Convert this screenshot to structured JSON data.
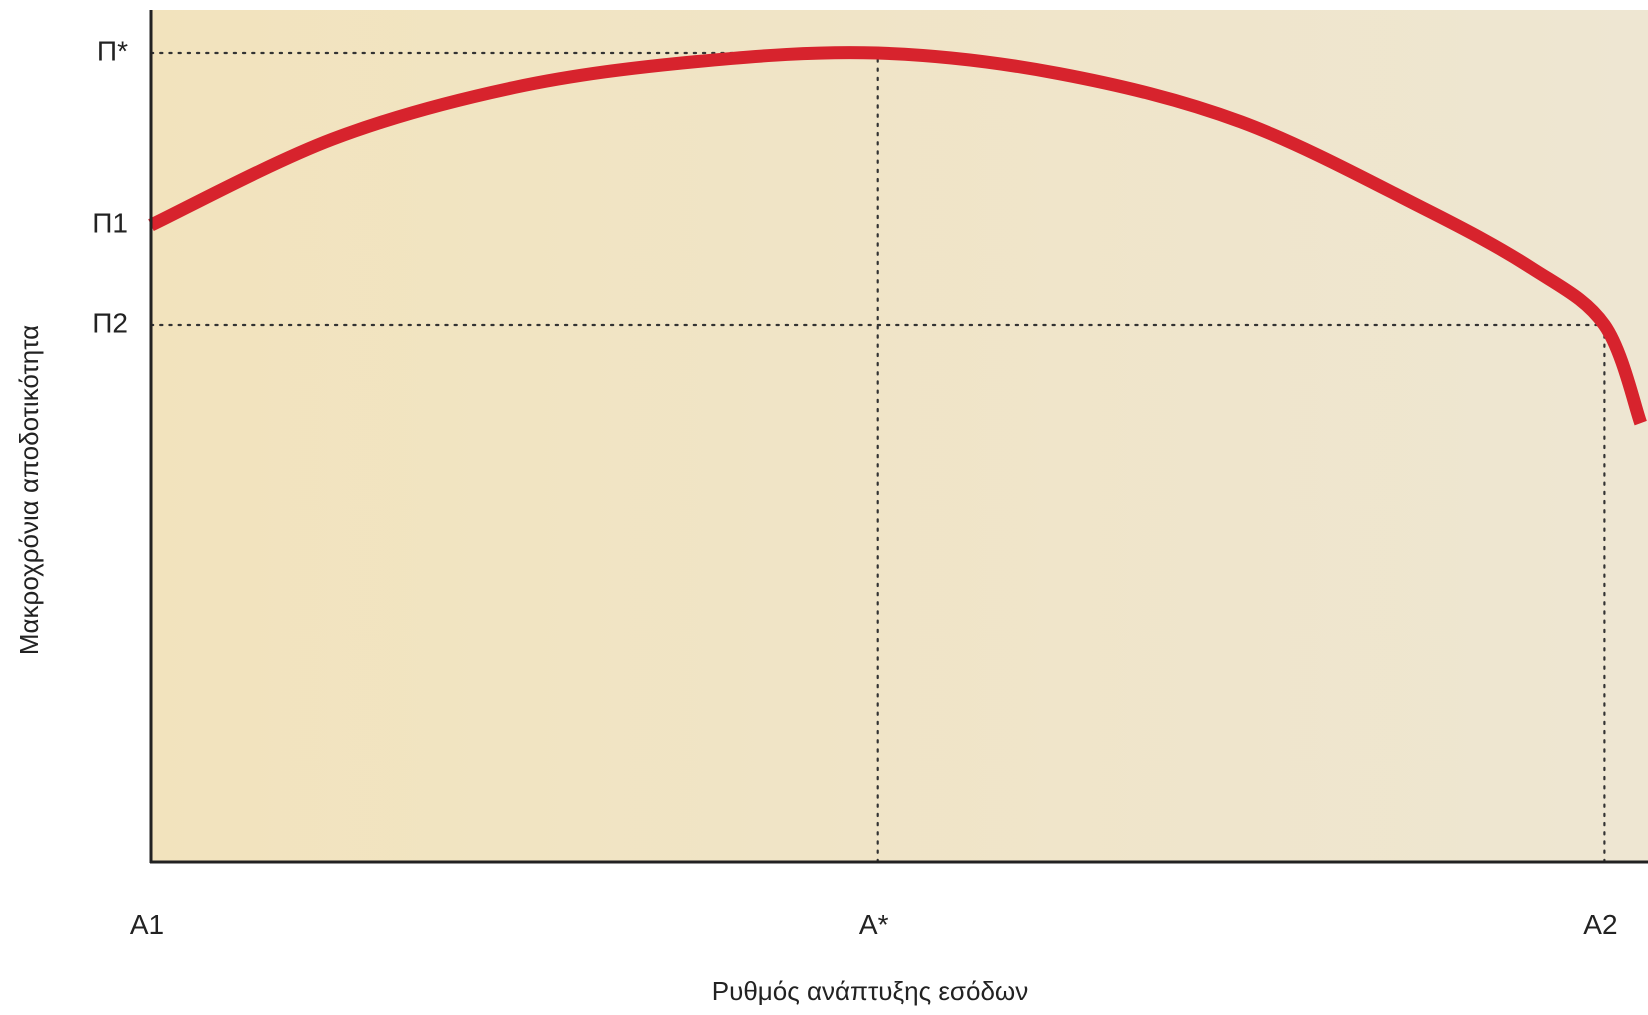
{
  "chart_data": {
    "type": "line",
    "title": "",
    "xlabel": "Ρυθμός ανάπτυξης εσόδων",
    "ylabel": "Μακροχρόνια αποδοτικότητα",
    "x_ticks": [
      {
        "label": "A1",
        "value": 0
      },
      {
        "label": "A*",
        "value": 1
      },
      {
        "label": "A2",
        "value": 2
      }
    ],
    "y_ticks": [
      {
        "label": "Π*",
        "value": 3
      },
      {
        "label": "Π1",
        "value": 2
      },
      {
        "label": "Π2",
        "value": 1.42
      }
    ],
    "xlim": [
      0,
      2.06
    ],
    "ylim": [
      -1.7,
      3.25
    ],
    "grid": false,
    "guides": [
      {
        "kind": "horizontal",
        "y": 3,
        "x_from": 0,
        "x_to": 1
      },
      {
        "kind": "vertical",
        "x": 1,
        "y_from": -1.7,
        "y_to": 3
      },
      {
        "kind": "horizontal",
        "y": 1.42,
        "x_from": 0,
        "x_to": 2
      },
      {
        "kind": "vertical",
        "x": 2,
        "y_from": -1.7,
        "y_to": 1.42
      }
    ],
    "series": [
      {
        "points": [
          {
            "x": 0,
            "y": 2
          },
          {
            "x": 0.25,
            "y": 2.5
          },
          {
            "x": 0.5,
            "y": 2.8
          },
          {
            "x": 0.75,
            "y": 2.95
          },
          {
            "x": 1,
            "y": 3
          },
          {
            "x": 1.25,
            "y": 2.88
          },
          {
            "x": 1.5,
            "y": 2.6
          },
          {
            "x": 1.75,
            "y": 2.1
          },
          {
            "x": 1.9,
            "y": 1.75
          },
          {
            "x": 2,
            "y": 1.42
          },
          {
            "x": 2.05,
            "y": 0.85
          }
        ],
        "color": "#d7232d"
      }
    ],
    "colors": {
      "background_left": "#f2e3bd",
      "background_right": "#eee6d2",
      "curve": "#d7232d",
      "axis": "#222222",
      "guide": "#333333"
    }
  }
}
